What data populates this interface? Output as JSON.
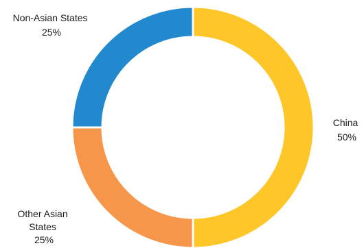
{
  "chart_data": {
    "type": "pie",
    "donut": true,
    "title": "",
    "slices": [
      {
        "label_lines": [
          "China"
        ],
        "value": 50,
        "value_label": "50%",
        "color": "#FFC629"
      },
      {
        "label_lines": [
          "Other Asian",
          "States"
        ],
        "value": 25,
        "value_label": "25%",
        "color": "#F5964A"
      },
      {
        "label_lines": [
          "Non-Asian States"
        ],
        "value": 25,
        "value_label": "25%",
        "color": "#2289CE"
      }
    ]
  }
}
